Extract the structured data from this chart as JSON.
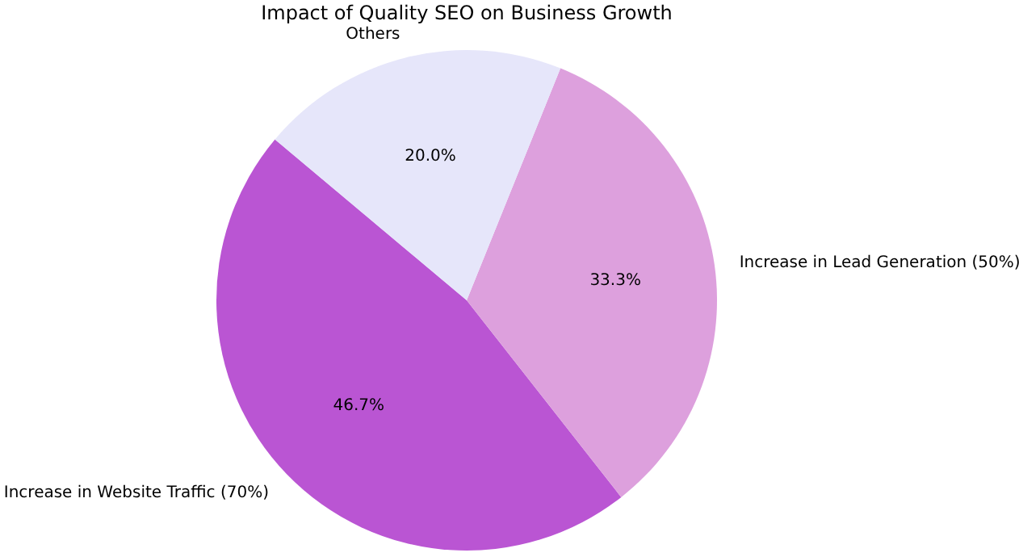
{
  "chart_data": {
    "type": "pie",
    "title": "Impact of Quality SEO on Business Growth",
    "categories": [
      "Increase in Website Traffic (70%)",
      "Increase in Lead Generation (50%)",
      "Others"
    ],
    "values": [
      46.7,
      33.3,
      20.0
    ],
    "value_labels": [
      "46.7%",
      "33.3%",
      "20.0%"
    ],
    "colors": [
      "#ba55d3",
      "#dda0dd",
      "#e6e6fa"
    ]
  }
}
